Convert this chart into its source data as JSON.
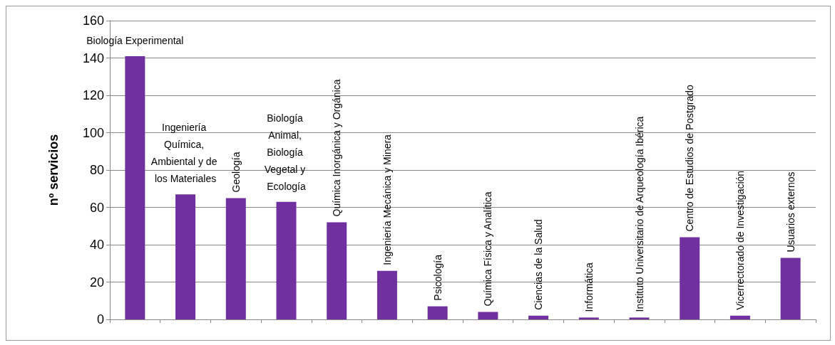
{
  "chart_data": {
    "type": "bar",
    "ylabel": "nº servicios",
    "categories": [
      "Biología Experimental",
      "Ingeniería Química, Ambiental y de los Materiales",
      "Geología",
      "Biología Animal, Biología Vegetal y Ecología",
      "Química Inorgánica y Orgánica",
      "Ingeniería Mecánica y Minera",
      "Psicología",
      "Química Física y Analítica",
      "Ciencias de la Salud",
      "Informática",
      "Instituto Universitario de Arqueología Ibérica",
      "Centro de Estudios de Postgrado",
      "Vicerrectorado de Investigación",
      "Usuarios externos"
    ],
    "values": [
      141,
      67,
      65,
      63,
      52,
      26,
      7,
      4,
      2,
      1,
      1,
      44,
      2,
      33
    ],
    "color": "#7030a0",
    "ylim": [
      0,
      160
    ],
    "yticks": [
      0,
      20,
      40,
      60,
      80,
      100,
      120,
      140,
      160
    ],
    "grid": "y"
  }
}
